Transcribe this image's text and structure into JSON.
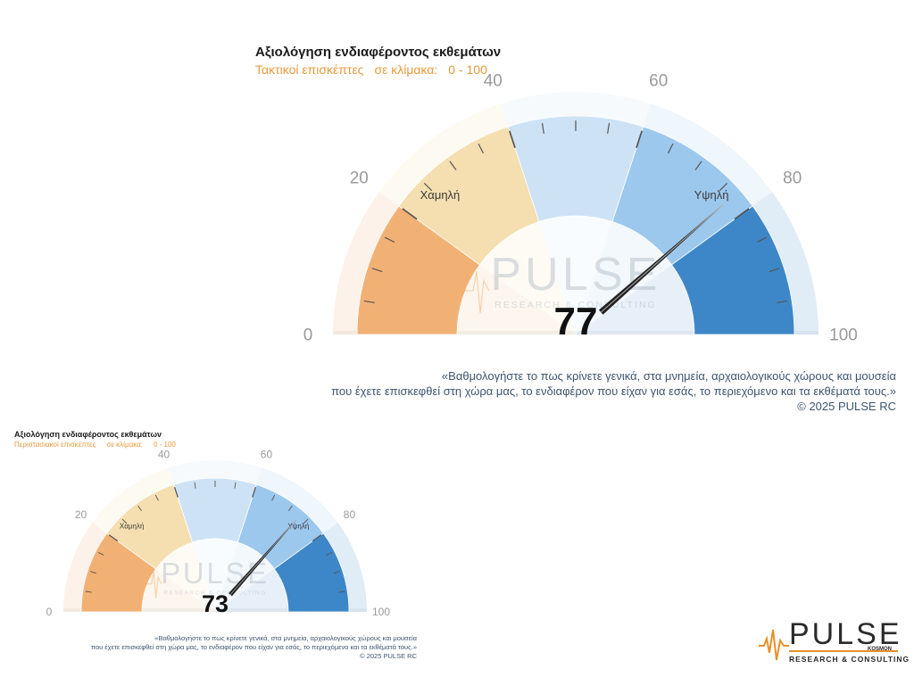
{
  "chart_data": [
    {
      "type": "gauge",
      "title": "Αξιολόγηση ενδιαφέροντος εκθεμάτων",
      "subtitle_parts": [
        "Τακτικοί επισκέπτες",
        "σε κλίμακα:",
        "0 - 100"
      ],
      "value": 77,
      "range": [
        0,
        100
      ],
      "tick_labels": [
        "0",
        "20",
        "40",
        "60",
        "80",
        "100"
      ],
      "zone_labels": {
        "low": "Χαμηλή",
        "high": "Υψηλή"
      },
      "bands": [
        {
          "from": 0,
          "to": 20,
          "color": "#f2b174"
        },
        {
          "from": 20,
          "to": 40,
          "color": "#f5dfb0"
        },
        {
          "from": 40,
          "to": 60,
          "color": "#cde3f5"
        },
        {
          "from": 60,
          "to": 80,
          "color": "#9cc8ee"
        },
        {
          "from": 80,
          "to": 100,
          "color": "#3d87c8"
        }
      ],
      "caption": {
        "line1": "«Βαθμολογήστε το πως κρίνετε γενικά, στα μνημεία, αρχαιολογικούς χώρους και μουσεία",
        "line2": "που έχετε επισκεφθεί στη χώρα μας, το ενδιαφέρον που είχαν για εσάς, το περιεχόμενο και τα εκθέματά τους.»",
        "copyright": "©  2025  PULSE RC"
      }
    },
    {
      "type": "gauge",
      "title": "Αξιολόγηση ενδιαφέροντος εκθεμάτων",
      "subtitle_parts": [
        "Περιστασιακοί επισκέπτες",
        "σε κλίμακα:",
        "0 - 100"
      ],
      "value": 73,
      "range": [
        0,
        100
      ],
      "tick_labels": [
        "0",
        "20",
        "40",
        "60",
        "80",
        "100"
      ],
      "zone_labels": {
        "low": "Χαμηλή",
        "high": "Υψηλή"
      },
      "bands": [
        {
          "from": 0,
          "to": 20,
          "color": "#f2b174"
        },
        {
          "from": 20,
          "to": 40,
          "color": "#f5dfb0"
        },
        {
          "from": 40,
          "to": 60,
          "color": "#cde3f5"
        },
        {
          "from": 60,
          "to": 80,
          "color": "#9cc8ee"
        },
        {
          "from": 80,
          "to": 100,
          "color": "#3d87c8"
        }
      ],
      "caption": {
        "line1": "«Βαθμολογήστε το πως κρίνετε γενικά,  στα μνημεία, αρχαιολογικούς χώρους και μουσεία",
        "line2": "που έχετε επισκεφθεί στη χώρα μας, το ενδιαφέρον που είχαν για εσάς, το περιεχόμενο και τα εκθέματά τους.»",
        "copyright": "©  2025  PULSE RC"
      }
    }
  ],
  "watermark": {
    "brand": "PULSE",
    "tagline": "RESEARCH & CONSULTING"
  },
  "logo": {
    "brand": "PULSE",
    "sub": "KOSMON",
    "tagline": "RESEARCH & CONSULTING",
    "accent": "#e8902a"
  }
}
